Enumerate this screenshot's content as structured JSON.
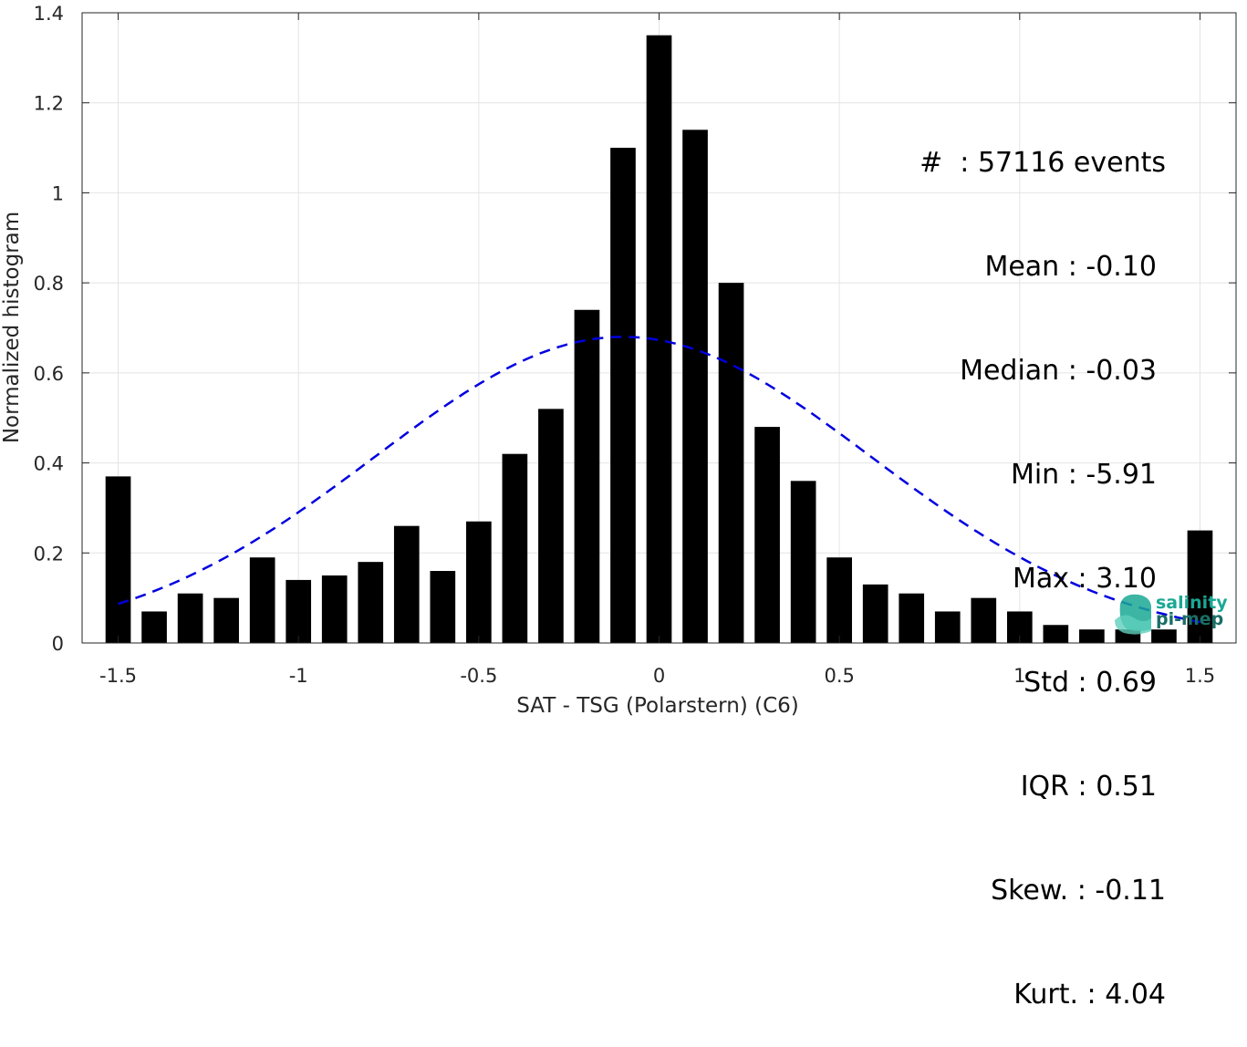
{
  "chart_data": {
    "type": "bar",
    "xlabel": "SAT - TSG (Polarstern) (C6)",
    "ylabel": "Normalized histogram",
    "xlim": [
      -1.6,
      1.6
    ],
    "ylim": [
      0,
      1.4
    ],
    "xticks": [
      -1.5,
      -1,
      -0.5,
      0,
      0.5,
      1,
      1.5
    ],
    "xtick_labels": [
      "-1.5",
      "-1",
      "-0.5",
      "0",
      "0.5",
      "1",
      "1.5"
    ],
    "yticks": [
      0,
      0.2,
      0.4,
      0.6,
      0.8,
      1,
      1.2,
      1.4
    ],
    "ytick_labels": [
      "0",
      "0.2",
      "0.4",
      "0.6",
      "0.8",
      "1",
      "1.2",
      "1.4"
    ],
    "grid": true,
    "bar_color": "#000000",
    "bar_width": 0.07,
    "x": [
      -1.5,
      -1.4,
      -1.3,
      -1.2,
      -1.1,
      -1.0,
      -0.9,
      -0.8,
      -0.7,
      -0.6,
      -0.5,
      -0.4,
      -0.3,
      -0.2,
      -0.1,
      0.0,
      0.1,
      0.2,
      0.3,
      0.4,
      0.5,
      0.6,
      0.7,
      0.8,
      0.9,
      1.0,
      1.1,
      1.2,
      1.3,
      1.4,
      1.5
    ],
    "values": [
      0.37,
      0.07,
      0.11,
      0.1,
      0.19,
      0.14,
      0.15,
      0.18,
      0.26,
      0.16,
      0.27,
      0.42,
      0.52,
      0.74,
      1.1,
      1.35,
      1.14,
      0.8,
      0.48,
      0.36,
      0.19,
      0.13,
      0.11,
      0.07,
      0.1,
      0.07,
      0.04,
      0.03,
      0.03,
      0.03,
      0.25
    ],
    "fit_curve": {
      "type": "gaussian",
      "mean": -0.1,
      "std": 0.69,
      "peak": 0.68,
      "x_range": [
        -1.5,
        1.5
      ],
      "color": "#0000e0",
      "style": "dashed"
    },
    "annotations": [
      "#  : 57116 events",
      "Mean : -0.10",
      "Median : -0.03",
      "Min : -5.91",
      "Max : 3.10",
      "Std : 0.69",
      "IQR : 0.51",
      "Skew. : -0.11",
      "Kurt. : 4.04"
    ]
  },
  "logo": {
    "line1": "salinity",
    "line2": "pi-mep",
    "color": "#1aa894"
  }
}
